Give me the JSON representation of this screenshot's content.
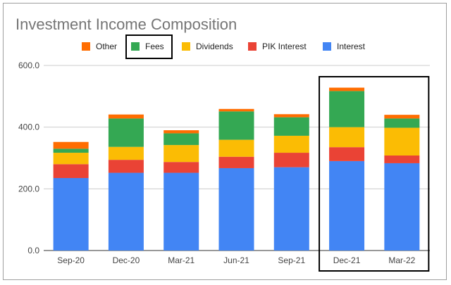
{
  "chart_data": {
    "type": "bar",
    "stacked": true,
    "title": "Investment Income Composition",
    "xlabel": "",
    "ylabel": "",
    "categories": [
      "Sep-20",
      "Dec-20",
      "Mar-21",
      "Jun-21",
      "Sep-21",
      "Dec-21",
      "Mar-22"
    ],
    "y_ticks": [
      "0.0",
      "200.0",
      "400.0",
      "600.0"
    ],
    "ylim": [
      0,
      600
    ],
    "grid": true,
    "legend_position": "top",
    "legend_order": [
      "Other",
      "Fees",
      "Dividends",
      "PIK Interest",
      "Interest"
    ],
    "series": [
      {
        "name": "Interest",
        "color": "#4285f4",
        "values": [
          235,
          252,
          252,
          267,
          270,
          290,
          283
        ]
      },
      {
        "name": "PIK Interest",
        "color": "#ea4335",
        "values": [
          45,
          42,
          35,
          37,
          47,
          45,
          25
        ]
      },
      {
        "name": "Dividends",
        "color": "#fbbc04",
        "values": [
          37,
          42,
          55,
          55,
          55,
          65,
          90
        ]
      },
      {
        "name": "Fees",
        "color": "#34a853",
        "values": [
          13,
          92,
          38,
          92,
          60,
          117,
          30
        ]
      },
      {
        "name": "Other",
        "color": "#ff6d01",
        "values": [
          22,
          13,
          10,
          8,
          10,
          11,
          12
        ]
      }
    ],
    "highlights": {
      "legend_item": "Fees",
      "categories": [
        "Dec-21",
        "Mar-22"
      ]
    }
  }
}
